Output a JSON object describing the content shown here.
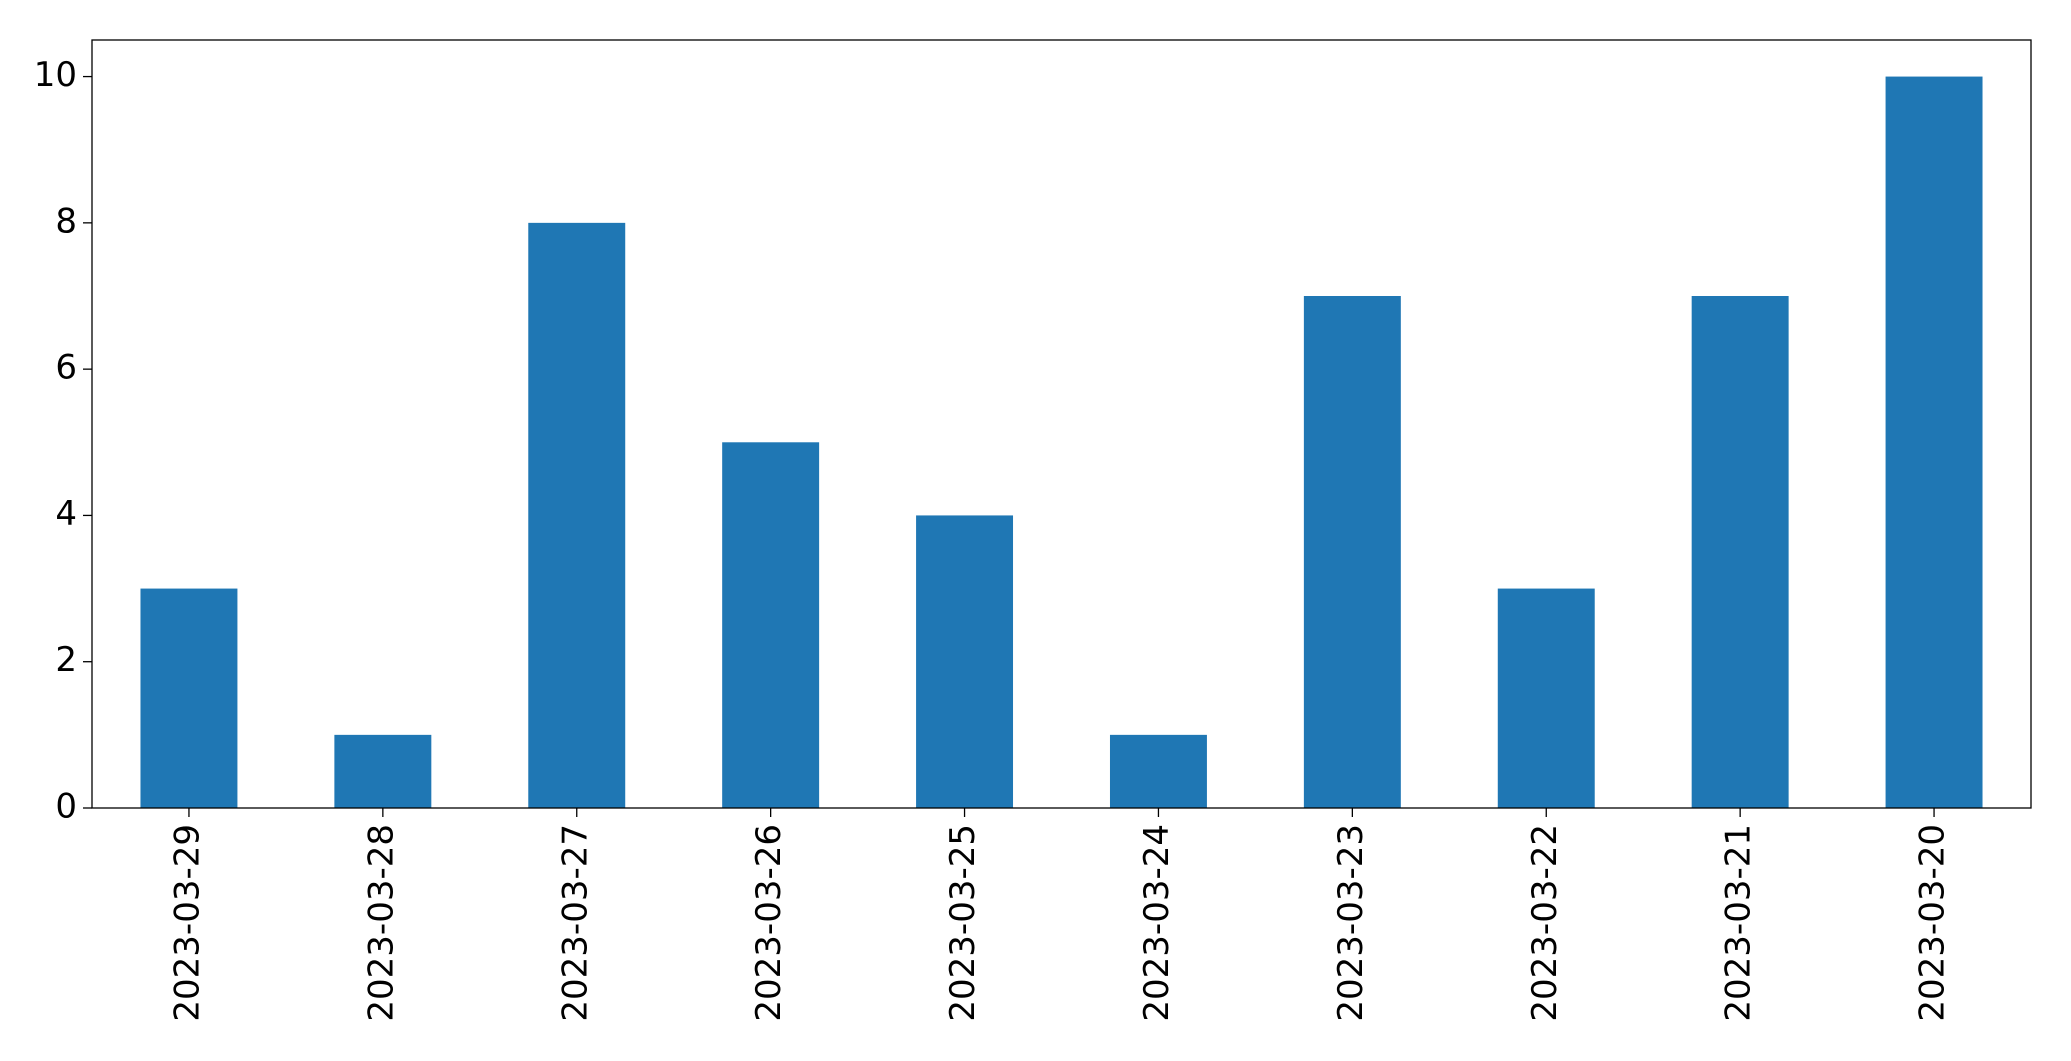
{
  "chart_data": {
    "type": "bar",
    "categories": [
      "2023-03-29",
      "2023-03-28",
      "2023-03-27",
      "2023-03-26",
      "2023-03-25",
      "2023-03-24",
      "2023-03-23",
      "2023-03-22",
      "2023-03-21",
      "2023-03-20"
    ],
    "values": [
      3,
      1,
      8,
      5,
      4,
      1,
      7,
      3,
      7,
      10
    ],
    "color": "#1f77b4",
    "ylim": [
      0,
      10.5
    ],
    "yticks": [
      0,
      2,
      4,
      6,
      8,
      10
    ],
    "grid": false
  }
}
